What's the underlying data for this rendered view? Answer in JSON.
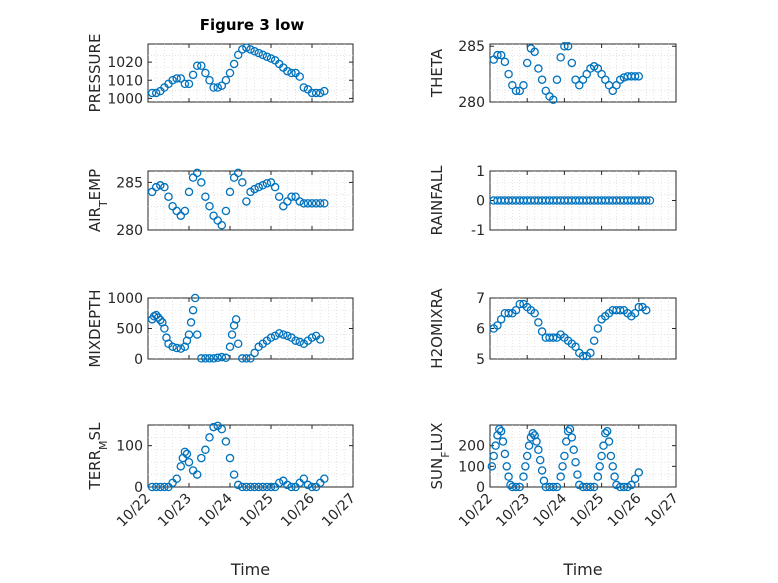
{
  "title": "Figure 3 low",
  "colors": {
    "marker": "#0072bd",
    "axis": "#262626",
    "grid": "#d9d9d9"
  },
  "chart_data": [
    {
      "type": "scatter",
      "title": "Figure 3 low",
      "ylabel": "PRESSURE",
      "xlabel": "",
      "xlim": [
        0,
        5
      ],
      "ylim": [
        998,
        1030
      ],
      "yticks": [
        1000,
        1010,
        1020
      ],
      "xticks": [
        0,
        1,
        2,
        3,
        4,
        5
      ],
      "xtick_labels": [],
      "grid": true,
      "x": [
        0.1,
        0.2,
        0.3,
        0.4,
        0.5,
        0.6,
        0.7,
        0.8,
        0.9,
        1.0,
        1.1,
        1.2,
        1.3,
        1.4,
        1.5,
        1.6,
        1.7,
        1.8,
        1.9,
        2.0,
        2.1,
        2.2,
        2.3,
        2.4,
        2.5,
        2.6,
        2.7,
        2.8,
        2.9,
        3.0,
        3.1,
        3.2,
        3.3,
        3.4,
        3.5,
        3.6,
        3.7,
        3.8,
        3.9,
        4.0,
        4.1,
        4.2,
        4.3
      ],
      "y": [
        1003,
        1003,
        1004,
        1006,
        1008,
        1010,
        1011,
        1011,
        1008,
        1008,
        1013,
        1018,
        1018,
        1014,
        1010,
        1006,
        1006,
        1007,
        1010,
        1014,
        1019,
        1024,
        1027,
        1028,
        1027,
        1026,
        1025,
        1024,
        1023,
        1022,
        1021,
        1019,
        1017,
        1015,
        1014,
        1014,
        1012,
        1006,
        1005,
        1003,
        1003,
        1003,
        1004
      ]
    },
    {
      "type": "scatter",
      "title": "",
      "ylabel": "THETA",
      "xlabel": "",
      "xlim": [
        0,
        5
      ],
      "ylim": [
        280,
        285.2
      ],
      "yticks": [
        280,
        285
      ],
      "xticks": [
        0,
        1,
        2,
        3,
        4,
        5
      ],
      "xtick_labels": [],
      "grid": true,
      "x": [
        0.1,
        0.2,
        0.3,
        0.4,
        0.5,
        0.6,
        0.7,
        0.8,
        0.9,
        1.0,
        1.1,
        1.2,
        1.3,
        1.4,
        1.5,
        1.6,
        1.7,
        1.8,
        1.9,
        2.0,
        2.1,
        2.2,
        2.3,
        2.4,
        2.5,
        2.6,
        2.7,
        2.8,
        2.9,
        3.0,
        3.1,
        3.2,
        3.3,
        3.4,
        3.5,
        3.6,
        3.7,
        3.8,
        3.9,
        4.0
      ],
      "y": [
        283.8,
        284.2,
        284.2,
        283.6,
        282.5,
        281.5,
        281,
        281,
        281.5,
        283.5,
        284.8,
        284.5,
        283,
        282,
        281,
        280.5,
        280.2,
        282,
        284,
        285,
        285,
        283.5,
        282,
        281.5,
        282,
        282.5,
        283,
        283.2,
        283,
        282.5,
        282,
        281.5,
        281,
        281.5,
        282,
        282.2,
        282.3,
        282.3,
        282.3,
        282.3
      ]
    },
    {
      "type": "scatter",
      "title": "",
      "ylabel": "AIR_TEMP",
      "xlabel": "",
      "xlim": [
        0,
        5
      ],
      "ylim": [
        280,
        286.2
      ],
      "yticks": [
        280,
        285
      ],
      "xticks": [
        0,
        1,
        2,
        3,
        4,
        5
      ],
      "xtick_labels": [],
      "grid": true,
      "x": [
        0.1,
        0.2,
        0.3,
        0.4,
        0.5,
        0.6,
        0.7,
        0.8,
        0.9,
        1.0,
        1.1,
        1.2,
        1.3,
        1.4,
        1.5,
        1.6,
        1.7,
        1.8,
        1.9,
        2.0,
        2.1,
        2.2,
        2.3,
        2.4,
        2.5,
        2.6,
        2.7,
        2.8,
        2.9,
        3.0,
        3.1,
        3.2,
        3.3,
        3.4,
        3.5,
        3.6,
        3.7,
        3.8,
        3.9,
        4.0,
        4.1,
        4.2,
        4.3
      ],
      "y": [
        284,
        284.5,
        284.7,
        284.5,
        283.5,
        282.5,
        282,
        281.5,
        282,
        284,
        285.5,
        286,
        285,
        283.5,
        282.5,
        281.5,
        281,
        280.5,
        282,
        284,
        285.5,
        286,
        285,
        283,
        284,
        284.3,
        284.5,
        284.7,
        284.9,
        285,
        284.5,
        283.5,
        282.5,
        283,
        283.5,
        283.5,
        283,
        282.8,
        282.8,
        282.8,
        282.8,
        282.8,
        282.8
      ]
    },
    {
      "type": "scatter",
      "title": "",
      "ylabel": "RAINFALL",
      "xlabel": "",
      "xlim": [
        0,
        5
      ],
      "ylim": [
        -1,
        1
      ],
      "yticks": [
        -1,
        0,
        1
      ],
      "xticks": [
        0,
        1,
        2,
        3,
        4,
        5
      ],
      "xtick_labels": [],
      "grid": true,
      "x": [
        0.1,
        0.2,
        0.3,
        0.4,
        0.5,
        0.6,
        0.7,
        0.8,
        0.9,
        1.0,
        1.1,
        1.2,
        1.3,
        1.4,
        1.5,
        1.6,
        1.7,
        1.8,
        1.9,
        2.0,
        2.1,
        2.2,
        2.3,
        2.4,
        2.5,
        2.6,
        2.7,
        2.8,
        2.9,
        3.0,
        3.1,
        3.2,
        3.3,
        3.4,
        3.5,
        3.6,
        3.7,
        3.8,
        3.9,
        4.0,
        4.1,
        4.2,
        4.3
      ],
      "y": [
        0,
        0,
        0,
        0,
        0,
        0,
        0,
        0,
        0,
        0,
        0,
        0,
        0,
        0,
        0,
        0,
        0,
        0,
        0,
        0,
        0,
        0,
        0,
        0,
        0,
        0,
        0,
        0,
        0,
        0,
        0,
        0,
        0,
        0,
        0,
        0,
        0,
        0,
        0,
        0,
        0,
        0,
        0
      ]
    },
    {
      "type": "scatter",
      "title": "",
      "ylabel": "MIXDEPTH",
      "xlabel": "",
      "xlim": [
        0,
        5
      ],
      "ylim": [
        0,
        1000
      ],
      "yticks": [
        0,
        500,
        1000
      ],
      "xticks": [
        0,
        1,
        2,
        3,
        4,
        5
      ],
      "xtick_labels": [],
      "grid": true,
      "x": [
        0.1,
        0.15,
        0.2,
        0.25,
        0.3,
        0.35,
        0.4,
        0.45,
        0.5,
        0.6,
        0.7,
        0.8,
        0.9,
        0.95,
        1.0,
        1.05,
        1.1,
        1.15,
        1.2,
        1.3,
        1.4,
        1.5,
        1.6,
        1.7,
        1.8,
        1.9,
        2.0,
        2.05,
        2.1,
        2.15,
        2.2,
        2.3,
        2.4,
        2.5,
        2.6,
        2.7,
        2.8,
        2.9,
        3.0,
        3.1,
        3.2,
        3.3,
        3.4,
        3.5,
        3.6,
        3.7,
        3.8,
        3.9,
        4.0,
        4.1,
        4.2
      ],
      "y": [
        650,
        700,
        720,
        680,
        640,
        600,
        500,
        350,
        250,
        200,
        180,
        170,
        200,
        300,
        400,
        600,
        800,
        1000,
        400,
        10,
        10,
        10,
        10,
        20,
        30,
        20,
        200,
        400,
        550,
        650,
        250,
        10,
        10,
        10,
        100,
        200,
        250,
        300,
        350,
        380,
        420,
        400,
        380,
        350,
        300,
        280,
        250,
        300,
        350,
        380,
        320
      ]
    },
    {
      "type": "scatter",
      "title": "",
      "ylabel": "H2OMIXRA",
      "xlabel": "",
      "xlim": [
        0,
        5
      ],
      "ylim": [
        5,
        7
      ],
      "yticks": [
        5,
        6,
        7
      ],
      "xticks": [
        0,
        1,
        2,
        3,
        4,
        5
      ],
      "xtick_labels": [],
      "grid": true,
      "x": [
        0.1,
        0.2,
        0.3,
        0.4,
        0.5,
        0.6,
        0.7,
        0.8,
        0.9,
        1.0,
        1.1,
        1.2,
        1.3,
        1.4,
        1.5,
        1.6,
        1.7,
        1.8,
        1.9,
        2.0,
        2.1,
        2.2,
        2.3,
        2.4,
        2.5,
        2.6,
        2.7,
        2.8,
        2.9,
        3.0,
        3.1,
        3.2,
        3.3,
        3.4,
        3.5,
        3.6,
        3.7,
        3.8,
        3.9,
        4.0,
        4.1,
        4.2
      ],
      "y": [
        6,
        6.1,
        6.3,
        6.5,
        6.5,
        6.5,
        6.6,
        6.8,
        6.8,
        6.7,
        6.6,
        6.5,
        6.2,
        5.9,
        5.7,
        5.7,
        5.7,
        5.7,
        5.8,
        5.7,
        5.6,
        5.5,
        5.4,
        5.2,
        5.1,
        5.1,
        5.2,
        5.6,
        6.0,
        6.3,
        6.4,
        6.5,
        6.6,
        6.6,
        6.6,
        6.6,
        6.5,
        6.4,
        6.5,
        6.7,
        6.7,
        6.6
      ]
    },
    {
      "type": "scatter",
      "title": "",
      "ylabel": "TERR_MSL",
      "xlabel": "Time",
      "xlim": [
        0,
        5
      ],
      "ylim": [
        0,
        150
      ],
      "yticks": [
        0,
        100
      ],
      "xticks": [
        0,
        1,
        2,
        3,
        4,
        5
      ],
      "xtick_labels": [
        "10/22",
        "10/23",
        "10/24",
        "10/25",
        "10/26",
        "10/27"
      ],
      "grid": true,
      "x": [
        0.1,
        0.2,
        0.3,
        0.4,
        0.5,
        0.6,
        0.7,
        0.8,
        0.85,
        0.9,
        0.95,
        1.0,
        1.1,
        1.2,
        1.3,
        1.4,
        1.5,
        1.6,
        1.7,
        1.8,
        1.9,
        2.0,
        2.1,
        2.2,
        2.3,
        2.4,
        2.5,
        2.6,
        2.7,
        2.8,
        2.9,
        3.0,
        3.1,
        3.2,
        3.3,
        3.4,
        3.5,
        3.6,
        3.7,
        3.8,
        3.9,
        4.0,
        4.1,
        4.2,
        4.3
      ],
      "y": [
        0,
        0,
        0,
        0,
        0,
        10,
        20,
        50,
        70,
        85,
        80,
        60,
        40,
        30,
        70,
        90,
        120,
        145,
        148,
        140,
        110,
        70,
        30,
        5,
        0,
        0,
        0,
        0,
        0,
        0,
        0,
        0,
        0,
        10,
        15,
        5,
        0,
        0,
        10,
        20,
        5,
        0,
        0,
        10,
        20
      ]
    },
    {
      "type": "scatter",
      "title": "",
      "ylabel": "SUN_FLUX",
      "xlabel": "Time",
      "xlim": [
        0,
        5
      ],
      "ylim": [
        0,
        300
      ],
      "yticks": [
        0,
        100,
        200
      ],
      "xticks": [
        0,
        1,
        2,
        3,
        4,
        5
      ],
      "xtick_labels": [
        "10/22",
        "10/23",
        "10/24",
        "10/25",
        "10/26",
        "10/27"
      ],
      "grid": true,
      "x": [
        0.05,
        0.1,
        0.15,
        0.2,
        0.25,
        0.3,
        0.35,
        0.4,
        0.45,
        0.5,
        0.55,
        0.6,
        0.7,
        0.8,
        0.9,
        0.95,
        1.0,
        1.05,
        1.1,
        1.15,
        1.2,
        1.25,
        1.3,
        1.35,
        1.4,
        1.45,
        1.5,
        1.6,
        1.7,
        1.8,
        1.9,
        1.95,
        2.0,
        2.05,
        2.1,
        2.15,
        2.2,
        2.25,
        2.3,
        2.35,
        2.4,
        2.5,
        2.6,
        2.7,
        2.8,
        2.9,
        2.95,
        3.0,
        3.05,
        3.1,
        3.15,
        3.2,
        3.25,
        3.3,
        3.35,
        3.4,
        3.5,
        3.6,
        3.7,
        3.8,
        3.9,
        4.0
      ],
      "y": [
        100,
        150,
        200,
        250,
        280,
        270,
        220,
        160,
        100,
        50,
        10,
        0,
        0,
        0,
        50,
        100,
        150,
        200,
        240,
        260,
        250,
        220,
        180,
        130,
        80,
        30,
        0,
        0,
        0,
        0,
        50,
        100,
        150,
        220,
        270,
        280,
        240,
        180,
        120,
        60,
        10,
        0,
        0,
        0,
        0,
        50,
        100,
        150,
        200,
        260,
        270,
        220,
        150,
        100,
        50,
        10,
        0,
        0,
        0,
        10,
        40,
        70
      ]
    }
  ]
}
